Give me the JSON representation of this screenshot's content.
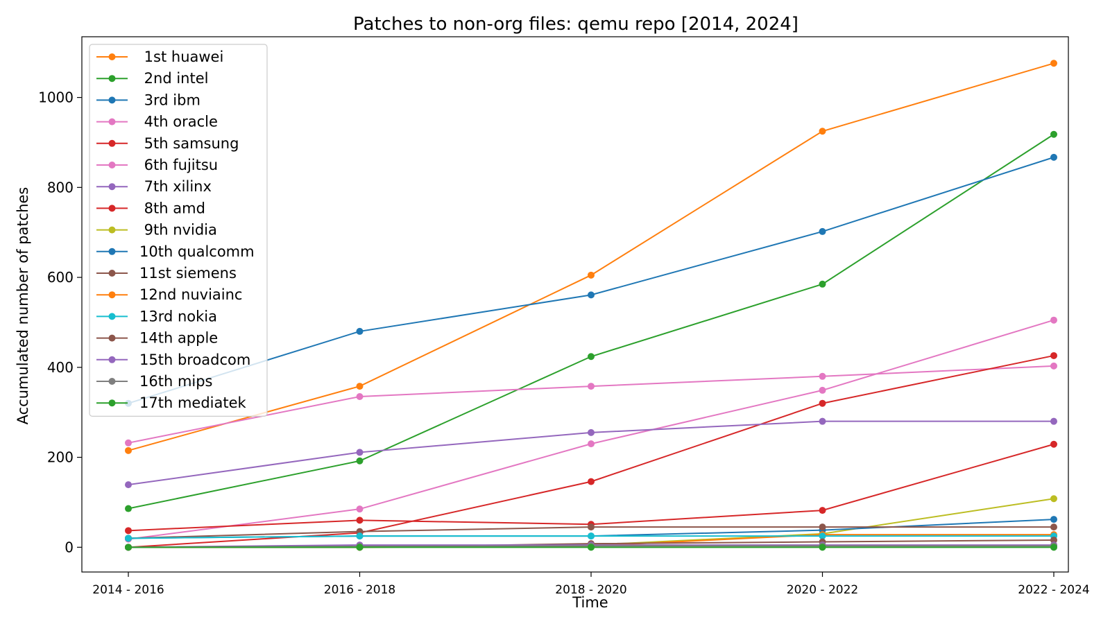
{
  "chart_data": {
    "type": "line",
    "title": "Patches to non-org files: qemu repo [2014, 2024]",
    "xlabel": "Time",
    "ylabel": "Accumulated number of patches",
    "categories": [
      "2014 - 2016",
      "2016 - 2018",
      "2018 - 2020",
      "2020 - 2022",
      "2022 - 2024"
    ],
    "ylim": [
      -55,
      1135
    ],
    "yticks": [
      0,
      200,
      400,
      600,
      800,
      1000
    ],
    "grid": false,
    "legend_position": "top-left",
    "series": [
      {
        "name": " 1st huawei",
        "color": "#ff7f0e",
        "values": [
          215,
          358,
          605,
          925,
          1076
        ]
      },
      {
        "name": " 2nd intel",
        "color": "#2ca02c",
        "values": [
          86,
          192,
          424,
          585,
          918
        ]
      },
      {
        "name": " 3rd ibm",
        "color": "#1f77b4",
        "values": [
          320,
          480,
          561,
          702,
          867
        ]
      },
      {
        "name": " 4th oracle",
        "color": "#e377c2",
        "values": [
          232,
          335,
          358,
          380,
          403
        ]
      },
      {
        "name": " 5th samsung",
        "color": "#d62728",
        "values": [
          0,
          32,
          146,
          320,
          426
        ]
      },
      {
        "name": " 6th fujitsu",
        "color": "#e377c2",
        "values": [
          18,
          85,
          230,
          349,
          505
        ]
      },
      {
        "name": " 7th xilinx",
        "color": "#9467bd",
        "values": [
          139,
          211,
          255,
          280,
          280
        ]
      },
      {
        "name": " 8th amd",
        "color": "#d62728",
        "values": [
          37,
          60,
          51,
          82,
          229
        ]
      },
      {
        "name": " 9th nvidia",
        "color": "#bcbd22",
        "values": [
          0,
          0,
          5,
          30,
          108
        ]
      },
      {
        "name": "10th qualcomm",
        "color": "#1f77b4",
        "values": [
          20,
          25,
          25,
          38,
          62
        ]
      },
      {
        "name": "11st siemens",
        "color": "#8c564b",
        "values": [
          20,
          35,
          45,
          45,
          45
        ]
      },
      {
        "name": "12nd nuviainc",
        "color": "#ff7f0e",
        "values": [
          0,
          0,
          3,
          28,
          28
        ]
      },
      {
        "name": "13rd nokia",
        "color": "#17becf",
        "values": [
          20,
          25,
          25,
          25,
          25
        ]
      },
      {
        "name": "14th apple",
        "color": "#8c564b",
        "values": [
          0,
          0,
          8,
          12,
          16
        ]
      },
      {
        "name": "15th broadcom",
        "color": "#9467bd",
        "values": [
          0,
          5,
          5,
          5,
          5
        ]
      },
      {
        "name": "16th mips",
        "color": "#7f7f7f",
        "values": [
          0,
          2,
          3,
          3,
          3
        ]
      },
      {
        "name": "17th mediatek",
        "color": "#2ca02c",
        "values": [
          0,
          0,
          0,
          0,
          0
        ]
      }
    ]
  }
}
